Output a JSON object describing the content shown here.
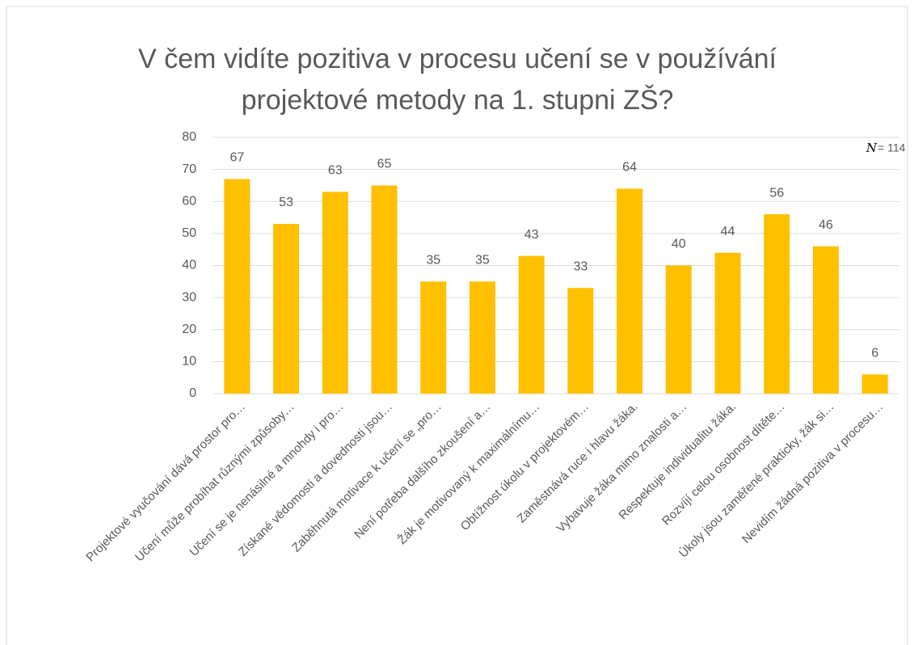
{
  "chart_data": {
    "type": "bar",
    "title": [
      "V čem vidíte pozitiva v procesu učení se v používání",
      "projektové metody na 1. stupni ZŠ?"
    ],
    "annotation": {
      "symbol": "N",
      "text": "= 114"
    },
    "categories": [
      "Projektové vyučování dává prostor pro…",
      "Učení může probíhat různými způsoby…",
      "Učení se je nenásilné a mnohdy i pro…",
      "Získané vědomosti a dovednosti jsou…",
      "Zaběhnutá motivace k učení se „pro…",
      "Není potřeba dalšího zkoušení a…",
      "Žák je motivovaný k maximálnímu…",
      "Obtížnost úkolu v projektovém…",
      "Zaměstnává ruce i hlavu žáka.",
      "Vybavuje žáka mimo znalosti a…",
      "Respektuje individualitu žáka.",
      "Rozvíjí celou osobnost dítěte…",
      "Úkoly jsou zaměřené prakticky, žák si…",
      "Nevidím žádná pozitiva v procesu…"
    ],
    "values": [
      67,
      53,
      63,
      65,
      35,
      35,
      43,
      33,
      64,
      40,
      44,
      56,
      46,
      6
    ],
    "color": "#ffc000",
    "ylim": [
      0,
      80
    ],
    "yticks": [
      0,
      10,
      20,
      30,
      40,
      50,
      60,
      70,
      80
    ],
    "grid": true
  }
}
